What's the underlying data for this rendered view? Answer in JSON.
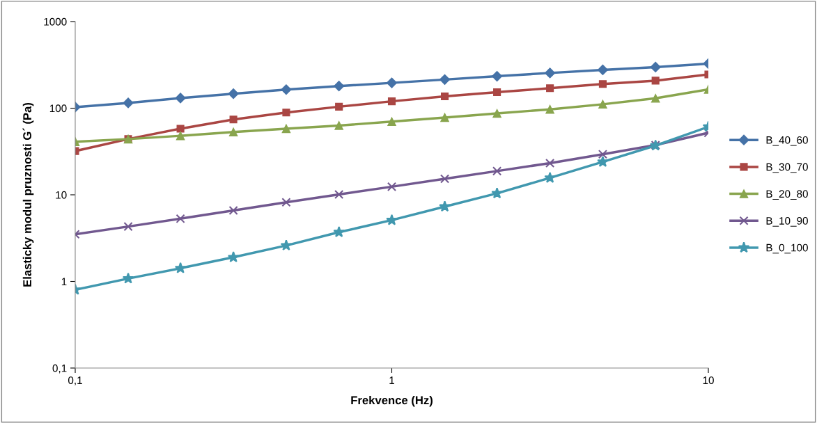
{
  "chart_data": {
    "type": "line",
    "xlabel": "Frekvence (Hz)",
    "ylabel": "Elasticky modul pruznosti G´ (Pa)",
    "log": "xy",
    "grid": false,
    "legend": "right",
    "line_style": "solid",
    "x": [
      0.1,
      0.147,
      0.215,
      0.316,
      0.464,
      0.681,
      1,
      1.47,
      2.15,
      3.16,
      4.64,
      6.81,
      10
    ],
    "xlim": [
      0.1,
      10
    ],
    "xticks": [
      {
        "value": 0.1,
        "label": "0,1"
      },
      1,
      10
    ],
    "ylim": [
      0.1,
      1000
    ],
    "yticks": [
      {
        "value": 0.1,
        "label": "0,1"
      },
      1,
      10,
      100,
      1000
    ],
    "series": [
      {
        "name": "B_40_60",
        "color": "#4572a7",
        "marker": "diamond",
        "values": [
          103,
          115,
          131,
          147,
          164,
          180,
          196,
          214,
          234,
          255,
          277,
          298,
          327
        ]
      },
      {
        "name": "B_30_70",
        "color": "#aa4643",
        "marker": "square",
        "values": [
          32,
          44,
          58,
          74,
          89,
          104,
          120,
          137,
          153,
          170,
          190,
          208,
          245
        ]
      },
      {
        "name": "B_20_80",
        "color": "#89a54e",
        "marker": "triangle",
        "values": [
          41,
          44,
          48,
          53,
          58,
          63,
          70,
          78,
          87,
          97,
          111,
          130,
          165
        ]
      },
      {
        "name": "B_10_90",
        "color": "#71588f",
        "marker": "cross",
        "values": [
          3.5,
          4.3,
          5.3,
          6.6,
          8.2,
          10.1,
          12.4,
          15.3,
          18.8,
          23.2,
          29.4,
          37.5,
          52
        ]
      },
      {
        "name": "B_0_100",
        "color": "#4198af",
        "marker": "star",
        "values": [
          0.8,
          1.08,
          1.42,
          1.9,
          2.6,
          3.7,
          5.1,
          7.3,
          10.4,
          15.7,
          24,
          37,
          61
        ]
      }
    ]
  }
}
